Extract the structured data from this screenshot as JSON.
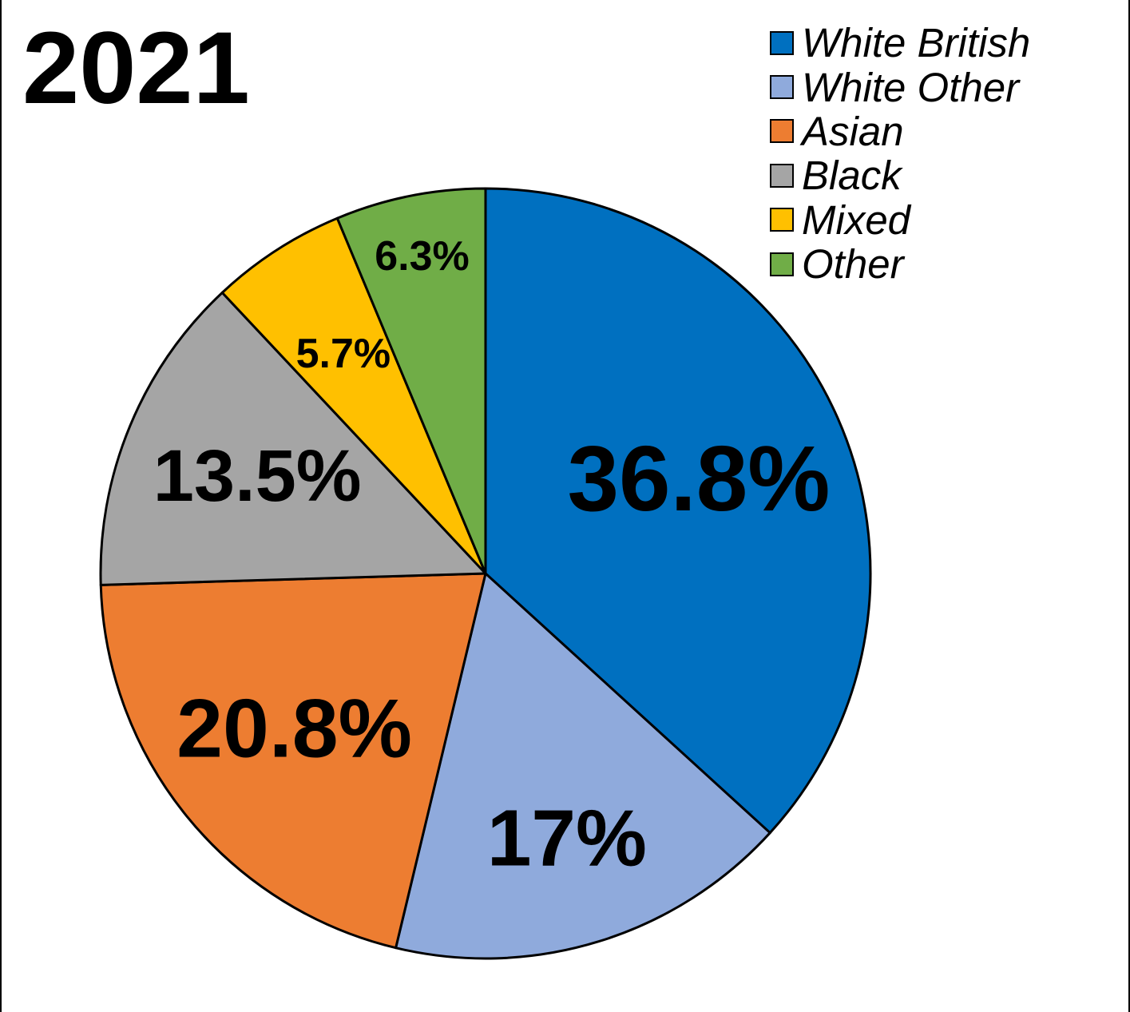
{
  "chart_data": {
    "type": "pie",
    "title": "2021",
    "legend_position": "top-right",
    "slices": [
      {
        "name": "White British",
        "value": 36.8,
        "label": "36.8%",
        "color": "#0070C0"
      },
      {
        "name": "White Other",
        "value": 17.0,
        "label": "17%",
        "color": "#8FAADC"
      },
      {
        "name": "Asian",
        "value": 20.8,
        "label": "20.8%",
        "color": "#ED7D31"
      },
      {
        "name": "Black",
        "value": 13.5,
        "label": "13.5%",
        "color": "#A5A5A5"
      },
      {
        "name": "Mixed",
        "value": 5.7,
        "label": "5.7%",
        "color": "#FFC000"
      },
      {
        "name": "Other",
        "value": 6.3,
        "label": "6.3%",
        "color": "#70AD47"
      }
    ]
  }
}
